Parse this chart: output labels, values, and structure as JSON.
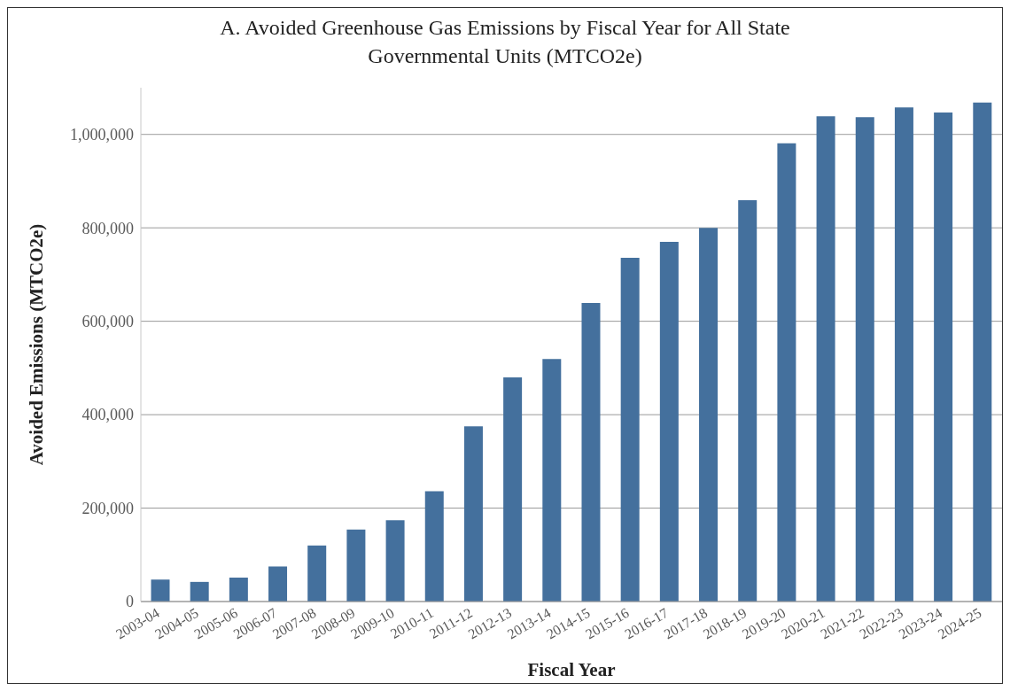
{
  "chart_data": {
    "type": "bar",
    "title": "A. Avoided Greenhouse Gas Emissions by Fiscal Year for All State Governmental Units (MTCO2e)",
    "xlabel": "Fiscal Year",
    "ylabel": "Avoided Emissions (MTCO2e)",
    "categories": [
      "2003-04",
      "2004-05",
      "2005-06",
      "2006-07",
      "2007-08",
      "2008-09",
      "2009-10",
      "2010-11",
      "2011-12",
      "2012-13",
      "2013-14",
      "2014-15",
      "2015-16",
      "2016-17",
      "2017-18",
      "2018-19",
      "2019-20",
      "2020-21",
      "2021-22",
      "2022-23",
      "2023-24",
      "2024-25"
    ],
    "values": [
      47000,
      42000,
      51000,
      75000,
      120000,
      154000,
      174000,
      236000,
      375000,
      480000,
      519000,
      639000,
      736000,
      770000,
      800000,
      859000,
      981000,
      1039000,
      1037000,
      1058000,
      1047000,
      1068000
    ],
    "color": "#44709d",
    "ylim": [
      0,
      1100000
    ],
    "yticks": [
      0,
      {
        "value": 200000,
        "label": "200,000"
      },
      {
        "value": 400000,
        "label": "400,000"
      },
      {
        "value": 600000,
        "label": "600,000"
      },
      {
        "value": 800000,
        "label": "800,000"
      },
      {
        "value": 1000000,
        "label": "1,000,000"
      }
    ],
    "grid": "y"
  }
}
